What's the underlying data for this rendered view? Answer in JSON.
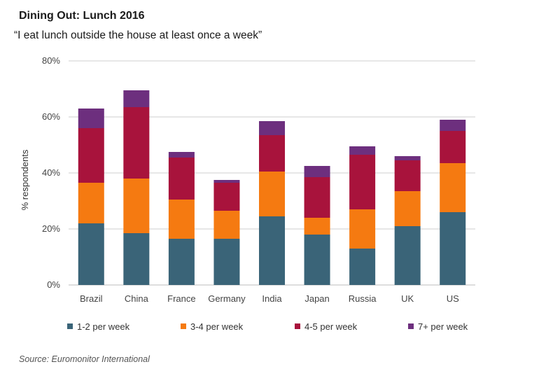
{
  "header": {
    "title": "Dining Out: Lunch 2016",
    "subtitle": "“I eat lunch outside the house at least once a week”"
  },
  "footer": {
    "source": "Source: Euromonitor International"
  },
  "chart_data": {
    "type": "bar",
    "stacked": true,
    "categories": [
      "Brazil",
      "China",
      "France",
      "Germany",
      "India",
      "Japan",
      "Russia",
      "UK",
      "US"
    ],
    "series": [
      {
        "name": "1-2 per week",
        "color": "#3a6478",
        "values": [
          22,
          18.5,
          16.5,
          16.5,
          24.5,
          18,
          13,
          21,
          26
        ]
      },
      {
        "name": "3-4 per week",
        "color": "#f57a11",
        "values": [
          14.5,
          19.5,
          14,
          10,
          16,
          6,
          14,
          12.5,
          17.5
        ]
      },
      {
        "name": "4-5 per week",
        "color": "#a8133c",
        "values": [
          19.5,
          25.5,
          15,
          10,
          13,
          14.5,
          19.5,
          11,
          11.5
        ]
      },
      {
        "name": "7+ per week",
        "color": "#6d2f7e",
        "values": [
          7,
          6,
          2,
          1,
          5,
          4,
          3,
          1.5,
          4
        ]
      }
    ],
    "ylabel": "% respondents",
    "ylim": [
      0,
      80
    ],
    "yticks": [
      0,
      20,
      40,
      60,
      80
    ],
    "ytick_labels": [
      "0%",
      "20%",
      "40%",
      "60%",
      "80%"
    ],
    "grid": true,
    "legend": "bottom"
  }
}
